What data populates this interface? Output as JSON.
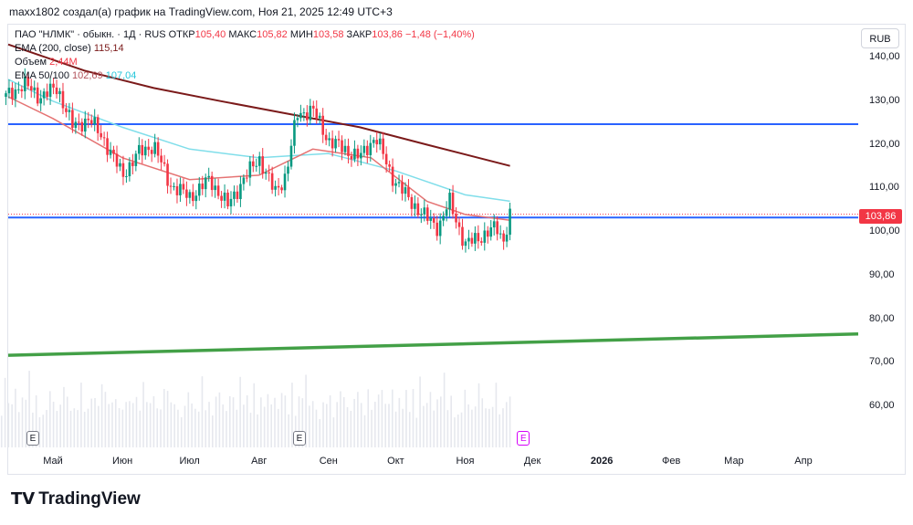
{
  "header_text": "maxx1802 создал(а) график на TradingView.com, Ноя 21, 2025 12:49 UTC+3",
  "legend": {
    "symbol": "ПАО \"НЛМК\" · обыкн. · 1Д · RUS",
    "open_label": "ОТКР",
    "open": "105,40",
    "high_label": "МАКС",
    "high": "105,82",
    "low_label": "МИН",
    "low": "103,58",
    "close_label": "ЗАКР",
    "close": "103,86",
    "change": "−1,48 (−1,40%)",
    "ema200_label": "EMA (200, close)",
    "ema200_value": "115,14",
    "volume_label": "Объем",
    "volume_value": "2,44M",
    "ema2_label": "EMA 50/100",
    "ema50_value": "102,69",
    "ema100_value": "107,04"
  },
  "currency": "RUB",
  "price_badge": "103,86",
  "logo_text": "TradingView",
  "event_marker": "E",
  "colors": {
    "up": "#089981",
    "down": "#f23645",
    "ema200": "#7b1a1a",
    "ema50": "#e57373",
    "ema100": "#80deea",
    "hline": "#2962ff",
    "trend": "#43a047"
  },
  "chart_data": {
    "type": "candlestick",
    "y_ticks": [
      "140,00",
      "130,00",
      "120,00",
      "110,00",
      "100,00",
      "90,00",
      "80,00",
      "70,00",
      "60,00"
    ],
    "y_tick_values": [
      140,
      130,
      120,
      110,
      100,
      90,
      80,
      70,
      60
    ],
    "ylim": [
      54.5,
      143.2
    ],
    "x_ticks": [
      {
        "label": "Май",
        "date": "2025-05-01",
        "bold": false
      },
      {
        "label": "Июн",
        "date": "2025-06-01",
        "bold": false
      },
      {
        "label": "Июл",
        "date": "2025-07-01",
        "bold": false
      },
      {
        "label": "Авг",
        "date": "2025-08-01",
        "bold": false
      },
      {
        "label": "Сен",
        "date": "2025-09-01",
        "bold": false
      },
      {
        "label": "Окт",
        "date": "2025-10-01",
        "bold": false
      },
      {
        "label": "Ноя",
        "date": "2025-11-01",
        "bold": false
      },
      {
        "label": "Дек",
        "date": "2025-12-01",
        "bold": false
      },
      {
        "label": "2026",
        "date": "2026-01-01",
        "bold": true
      },
      {
        "label": "Фев",
        "date": "2026-02-01",
        "bold": false
      },
      {
        "label": "Мар",
        "date": "2026-03-01",
        "bold": false
      },
      {
        "label": "Апр",
        "date": "2026-04-01",
        "bold": false
      }
    ],
    "price_path": [
      [
        "2025-04-10",
        131
      ],
      [
        "2025-04-18",
        134
      ],
      [
        "2025-04-25",
        131
      ],
      [
        "2025-05-03",
        133
      ],
      [
        "2025-05-10",
        124
      ],
      [
        "2025-05-17",
        126
      ],
      [
        "2025-05-24",
        121
      ],
      [
        "2025-06-01",
        113
      ],
      [
        "2025-06-08",
        118
      ],
      [
        "2025-06-15",
        120
      ],
      [
        "2025-06-22",
        111
      ],
      [
        "2025-07-01",
        108
      ],
      [
        "2025-07-10",
        112
      ],
      [
        "2025-07-18",
        106
      ],
      [
        "2025-07-25",
        112
      ],
      [
        "2025-08-01",
        117
      ],
      [
        "2025-08-08",
        109
      ],
      [
        "2025-08-13",
        113
      ],
      [
        "2025-08-18",
        127
      ],
      [
        "2025-08-25",
        128
      ],
      [
        "2025-09-01",
        121
      ],
      [
        "2025-09-08",
        119
      ],
      [
        "2025-09-15",
        117
      ],
      [
        "2025-09-22",
        122
      ],
      [
        "2025-09-29",
        113
      ],
      [
        "2025-10-06",
        108
      ],
      [
        "2025-10-13",
        104
      ],
      [
        "2025-10-20",
        101
      ],
      [
        "2025-10-25",
        107
      ],
      [
        "2025-11-01",
        97
      ],
      [
        "2025-11-08",
        99
      ],
      [
        "2025-11-15",
        101
      ],
      [
        "2025-11-18",
        98
      ],
      [
        "2025-11-21",
        103.86
      ]
    ],
    "ema200": [
      [
        "2025-04-01",
        143
      ],
      [
        "2025-05-15",
        137
      ],
      [
        "2025-06-15",
        133
      ],
      [
        "2025-07-15",
        130
      ],
      [
        "2025-08-15",
        127
      ],
      [
        "2025-09-15",
        124
      ],
      [
        "2025-10-15",
        120
      ],
      [
        "2025-11-21",
        115.14
      ]
    ],
    "ema100": [
      [
        "2025-04-01",
        135
      ],
      [
        "2025-05-01",
        130
      ],
      [
        "2025-06-01",
        124
      ],
      [
        "2025-07-01",
        119
      ],
      [
        "2025-08-01",
        117
      ],
      [
        "2025-09-01",
        118
      ],
      [
        "2025-10-01",
        114
      ],
      [
        "2025-11-01",
        108.5
      ],
      [
        "2025-11-21",
        107.04
      ]
    ],
    "ema50": [
      [
        "2025-04-01",
        131
      ],
      [
        "2025-05-01",
        126
      ],
      [
        "2025-06-01",
        117
      ],
      [
        "2025-07-01",
        112
      ],
      [
        "2025-08-01",
        113
      ],
      [
        "2025-08-25",
        119
      ],
      [
        "2025-09-20",
        117
      ],
      [
        "2025-10-15",
        107
      ],
      [
        "2025-11-01",
        104
      ],
      [
        "2025-11-21",
        102.69
      ]
    ],
    "hlines": [
      124.7,
      103.3
    ],
    "trendline": [
      [
        "2025-04-01",
        71.7
      ],
      [
        "2026-04-25",
        76.6
      ]
    ],
    "volume_ratios": [
      0.5,
      0.7,
      0.4,
      0.9,
      0.6,
      0.5,
      0.8,
      0.4,
      0.6,
      0.7,
      1.0,
      0.5,
      0.6,
      0.4,
      0.3,
      0.5,
      0.7,
      0.6,
      0.4,
      0.5,
      0.9,
      0.6,
      0.5,
      0.4,
      0.6,
      0.8,
      0.5,
      0.4,
      0.7,
      0.6,
      0.5,
      0.9,
      0.7,
      0.6,
      0.5,
      0.8,
      0.4,
      0.6,
      0.5,
      0.7
    ],
    "event_dates": [
      "2025-04-22",
      "2025-08-19"
    ],
    "pending_event_date": "2025-11-27"
  }
}
